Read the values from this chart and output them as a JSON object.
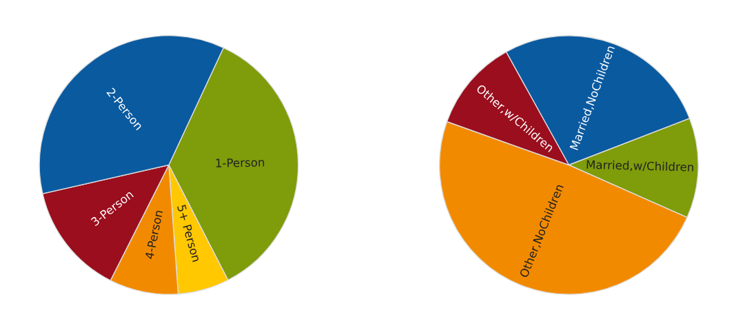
{
  "chart_data": [
    {
      "type": "pie",
      "categories": [
        "1-Person",
        "5+ Person",
        "4-Person",
        "3-Person",
        "2-Person"
      ],
      "values": [
        35.5,
        6.4,
        8.6,
        14,
        35.5
      ],
      "colors": [
        "#7f9c0a",
        "#ffc800",
        "#f28a00",
        "#9a0e1e",
        "#0a5aa0"
      ]
    },
    {
      "type": "pie",
      "categories": [
        "Married,NoChildren",
        "Married,w/Children",
        "Other,NoChildren",
        "Other,w/Children"
      ],
      "values": [
        27.2,
        12.5,
        48.8,
        11.5
      ],
      "colors": [
        "#0a5aa0",
        "#7f9c0a",
        "#f28a00",
        "#9a0e1e"
      ]
    }
  ]
}
